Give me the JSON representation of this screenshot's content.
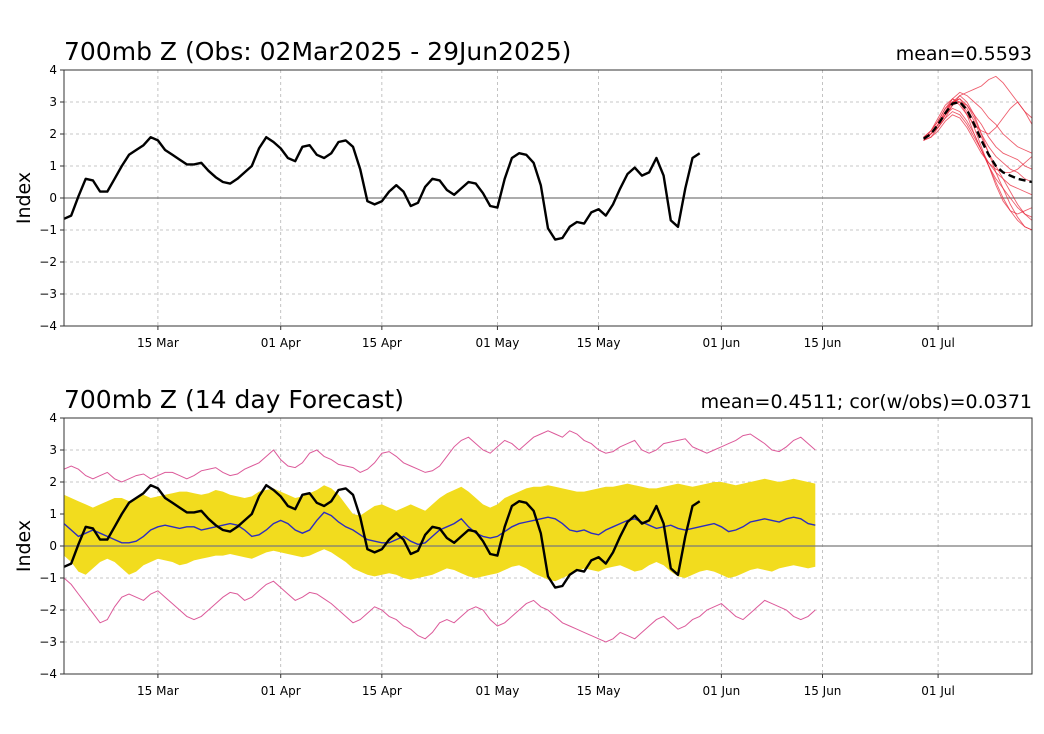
{
  "chart_data": [
    {
      "type": "line",
      "title": "700mb Z (Obs: 02Mar2025 - 29Jun2025)",
      "stat": "mean=0.5593",
      "ylabel": "Index",
      "xlabel": "",
      "ylim": [
        -4,
        4
      ],
      "yticks": [
        -4,
        -3,
        -2,
        -1,
        0,
        1,
        2,
        3,
        4
      ],
      "xlim": [
        "2025-03-02",
        "2025-07-14"
      ],
      "xticks": [
        {
          "date": "2025-03-15",
          "label": "15 Mar"
        },
        {
          "date": "2025-04-01",
          "label": "01 Apr"
        },
        {
          "date": "2025-04-15",
          "label": "15 Apr"
        },
        {
          "date": "2025-05-01",
          "label": "01 May"
        },
        {
          "date": "2025-05-15",
          "label": "15 May"
        },
        {
          "date": "2025-06-01",
          "label": "01 Jun"
        },
        {
          "date": "2025-06-15",
          "label": "15 Jun"
        },
        {
          "date": "2025-07-01",
          "label": "01 Jul"
        }
      ],
      "grid": true,
      "colors": {
        "obs": "#000000",
        "members": "#e8283c",
        "ensemble_mean": "#000000"
      },
      "obs": {
        "start": "2025-03-02",
        "values": [
          -0.65,
          -0.55,
          0.05,
          0.6,
          0.55,
          0.2,
          0.2,
          0.6,
          1.0,
          1.35,
          1.5,
          1.65,
          1.9,
          1.8,
          1.5,
          1.35,
          1.2,
          1.05,
          1.05,
          1.1,
          0.85,
          0.65,
          0.5,
          0.45,
          0.6,
          0.8,
          1.0,
          1.55,
          1.9,
          1.75,
          1.55,
          1.25,
          1.15,
          1.6,
          1.65,
          1.35,
          1.25,
          1.4,
          1.75,
          1.8,
          1.6,
          0.9,
          -0.1,
          -0.2,
          -0.1,
          0.2,
          0.4,
          0.2,
          -0.25,
          -0.15,
          0.35,
          0.6,
          0.55,
          0.25,
          0.1,
          0.3,
          0.5,
          0.45,
          0.15,
          -0.25,
          -0.3,
          0.6,
          1.25,
          1.4,
          1.35,
          1.1,
          0.4,
          -0.95,
          -1.3,
          -1.25,
          -0.9,
          -0.75,
          -0.8,
          -0.45,
          -0.35,
          -0.55,
          -0.2,
          0.3,
          0.75,
          0.95,
          0.7,
          0.8,
          1.25,
          0.7,
          -0.7,
          -0.9,
          0.3,
          1.25,
          1.4
        ]
      },
      "members_forecast": {
        "start": "2025-06-29",
        "members": [
          [
            1.8,
            2.0,
            2.3,
            2.7,
            3.0,
            3.1,
            2.9,
            2.5,
            2.0,
            1.6,
            1.3,
            1.1,
            0.9,
            0.8,
            0.6,
            0.5
          ],
          [
            1.8,
            2.1,
            2.4,
            2.8,
            3.1,
            3.0,
            2.6,
            2.0,
            1.5,
            1.0,
            0.6,
            0.3,
            0.0,
            -0.3,
            -0.5,
            -0.7
          ],
          [
            1.9,
            2.0,
            2.2,
            2.5,
            2.9,
            3.2,
            3.3,
            3.4,
            3.5,
            3.7,
            3.8,
            3.6,
            3.3,
            3.0,
            2.7,
            2.5
          ],
          [
            1.8,
            2.0,
            2.3,
            2.6,
            2.8,
            2.7,
            2.4,
            2.0,
            1.5,
            1.0,
            0.5,
            0.0,
            -0.4,
            -0.7,
            -0.9,
            -1.0
          ],
          [
            1.9,
            2.1,
            2.5,
            2.9,
            3.1,
            2.9,
            2.6,
            2.3,
            2.1,
            2.0,
            2.2,
            2.5,
            2.8,
            3.0,
            2.7,
            2.3
          ],
          [
            1.8,
            1.9,
            2.2,
            2.5,
            2.7,
            2.6,
            2.3,
            1.9,
            1.5,
            1.1,
            0.8,
            0.6,
            0.4,
            0.3,
            0.2,
            0.1
          ],
          [
            1.9,
            2.0,
            2.3,
            2.6,
            3.0,
            3.1,
            2.8,
            2.4,
            1.9,
            1.4,
            1.0,
            0.6,
            0.2,
            -0.2,
            -0.5,
            -0.6
          ],
          [
            1.8,
            2.0,
            2.2,
            2.6,
            2.9,
            3.0,
            2.9,
            2.6,
            2.3,
            1.9,
            1.6,
            1.4,
            1.3,
            1.2,
            1.0,
            0.9
          ],
          [
            1.9,
            2.1,
            2.4,
            2.8,
            3.0,
            3.2,
            3.0,
            2.6,
            2.0,
            1.4,
            0.8,
            0.3,
            -0.2,
            -0.6,
            -0.9,
            -1.0
          ],
          [
            1.8,
            1.9,
            2.1,
            2.4,
            2.6,
            2.5,
            2.2,
            1.8,
            1.4,
            1.1,
            0.9,
            0.8,
            0.8,
            0.9,
            1.1,
            1.3
          ],
          [
            1.8,
            2.0,
            2.3,
            2.7,
            3.0,
            3.0,
            2.7,
            2.2,
            1.6,
            1.0,
            0.4,
            -0.1,
            -0.4,
            -0.5,
            -0.4,
            -0.3
          ],
          [
            1.9,
            2.0,
            2.3,
            2.7,
            3.1,
            3.3,
            3.2,
            3.0,
            2.8,
            2.5,
            2.3,
            2.0,
            1.8,
            1.6,
            1.5,
            1.4
          ]
        ],
        "ensemble_mean": [
          1.85,
          2.0,
          2.3,
          2.65,
          2.95,
          3.0,
          2.75,
          2.3,
          1.8,
          1.35,
          1.0,
          0.8,
          0.7,
          0.6,
          0.55,
          0.5
        ]
      }
    },
    {
      "type": "line",
      "title": "700mb Z (14 day Forecast)",
      "stat": "mean=0.4511; cor(w/obs)=0.0371",
      "ylabel": "Index",
      "xlabel": "",
      "ylim": [
        -4,
        4
      ],
      "yticks": [
        -4,
        -3,
        -2,
        -1,
        0,
        1,
        2,
        3,
        4
      ],
      "xlim": [
        "2025-03-02",
        "2025-07-14"
      ],
      "xticks": [
        {
          "date": "2025-03-15",
          "label": "15 Mar"
        },
        {
          "date": "2025-04-01",
          "label": "01 Apr"
        },
        {
          "date": "2025-04-15",
          "label": "15 Apr"
        },
        {
          "date": "2025-05-01",
          "label": "01 May"
        },
        {
          "date": "2025-05-15",
          "label": "15 May"
        },
        {
          "date": "2025-06-01",
          "label": "01 Jun"
        },
        {
          "date": "2025-06-15",
          "label": "15 Jun"
        },
        {
          "date": "2025-07-01",
          "label": "01 Jul"
        }
      ],
      "grid": true,
      "colors": {
        "obs": "#000000",
        "forecast_mean": "#2d2dbf",
        "band": "#f2dc1e",
        "extremes": "#dc5a9a"
      },
      "forecast": {
        "start": "2025-03-02",
        "mean": [
          0.7,
          0.5,
          0.3,
          0.4,
          0.5,
          0.4,
          0.3,
          0.2,
          0.1,
          0.1,
          0.15,
          0.3,
          0.5,
          0.6,
          0.65,
          0.6,
          0.55,
          0.6,
          0.6,
          0.5,
          0.55,
          0.6,
          0.65,
          0.7,
          0.65,
          0.5,
          0.3,
          0.35,
          0.5,
          0.7,
          0.8,
          0.7,
          0.5,
          0.4,
          0.5,
          0.8,
          1.05,
          0.95,
          0.75,
          0.6,
          0.5,
          0.35,
          0.2,
          0.15,
          0.1,
          0.1,
          0.2,
          0.3,
          0.15,
          0.05,
          0.1,
          0.3,
          0.5,
          0.6,
          0.7,
          0.85,
          0.6,
          0.4,
          0.3,
          0.25,
          0.3,
          0.45,
          0.6,
          0.7,
          0.75,
          0.8,
          0.85,
          0.9,
          0.85,
          0.7,
          0.5,
          0.45,
          0.5,
          0.4,
          0.35,
          0.5,
          0.6,
          0.7,
          0.8,
          0.85,
          0.75,
          0.65,
          0.55,
          0.6,
          0.65,
          0.55,
          0.5,
          0.55,
          0.6,
          0.65,
          0.7,
          0.6,
          0.45,
          0.5,
          0.6,
          0.75,
          0.8,
          0.85,
          0.8,
          0.75,
          0.85,
          0.9,
          0.85,
          0.7,
          0.65
        ],
        "band_upper": [
          1.6,
          1.5,
          1.4,
          1.3,
          1.2,
          1.3,
          1.4,
          1.5,
          1.5,
          1.4,
          1.5,
          1.6,
          1.5,
          1.55,
          1.6,
          1.65,
          1.7,
          1.7,
          1.65,
          1.6,
          1.65,
          1.75,
          1.7,
          1.6,
          1.55,
          1.5,
          1.55,
          1.7,
          1.75,
          1.8,
          1.7,
          1.6,
          1.5,
          1.55,
          1.65,
          1.75,
          1.9,
          1.8,
          1.6,
          1.3,
          1.0,
          0.95,
          1.1,
          1.25,
          1.3,
          1.2,
          1.1,
          1.2,
          1.3,
          1.2,
          1.1,
          1.3,
          1.5,
          1.65,
          1.75,
          1.85,
          1.7,
          1.5,
          1.3,
          1.2,
          1.3,
          1.5,
          1.6,
          1.7,
          1.8,
          1.85,
          1.85,
          1.9,
          1.85,
          1.8,
          1.75,
          1.7,
          1.7,
          1.75,
          1.8,
          1.85,
          1.85,
          1.9,
          1.95,
          1.9,
          1.85,
          1.8,
          1.8,
          1.85,
          1.9,
          1.95,
          1.9,
          1.85,
          1.9,
          1.95,
          2.0,
          2.0,
          1.95,
          1.9,
          1.95,
          2.0,
          2.05,
          2.1,
          2.05,
          2.0,
          2.05,
          2.1,
          2.05,
          2.0,
          1.95
        ],
        "band_lower": [
          -0.3,
          -0.5,
          -0.8,
          -0.9,
          -0.7,
          -0.5,
          -0.4,
          -0.5,
          -0.7,
          -0.9,
          -0.8,
          -0.6,
          -0.5,
          -0.4,
          -0.45,
          -0.5,
          -0.6,
          -0.55,
          -0.45,
          -0.4,
          -0.35,
          -0.3,
          -0.3,
          -0.25,
          -0.3,
          -0.35,
          -0.4,
          -0.3,
          -0.2,
          -0.15,
          -0.2,
          -0.25,
          -0.3,
          -0.35,
          -0.3,
          -0.2,
          -0.1,
          -0.2,
          -0.35,
          -0.5,
          -0.7,
          -0.8,
          -0.9,
          -0.95,
          -0.9,
          -0.85,
          -0.9,
          -1.0,
          -1.05,
          -1.0,
          -0.95,
          -0.9,
          -0.8,
          -0.7,
          -0.75,
          -0.85,
          -0.95,
          -1.0,
          -0.95,
          -0.9,
          -0.85,
          -0.75,
          -0.65,
          -0.6,
          -0.7,
          -0.85,
          -0.95,
          -1.05,
          -1.1,
          -1.0,
          -0.9,
          -0.8,
          -0.7,
          -0.75,
          -0.8,
          -0.7,
          -0.65,
          -0.6,
          -0.7,
          -0.8,
          -0.75,
          -0.6,
          -0.5,
          -0.6,
          -0.8,
          -0.95,
          -1.0,
          -0.9,
          -0.8,
          -0.75,
          -0.8,
          -0.9,
          -1.0,
          -0.95,
          -0.85,
          -0.75,
          -0.7,
          -0.75,
          -0.8,
          -0.7,
          -0.65,
          -0.6,
          -0.65,
          -0.7,
          -0.65
        ],
        "max": [
          2.4,
          2.5,
          2.4,
          2.2,
          2.1,
          2.2,
          2.3,
          2.1,
          2.0,
          2.1,
          2.2,
          2.25,
          2.1,
          2.2,
          2.3,
          2.3,
          2.2,
          2.1,
          2.2,
          2.35,
          2.4,
          2.45,
          2.3,
          2.2,
          2.25,
          2.4,
          2.5,
          2.6,
          2.8,
          3.0,
          2.7,
          2.5,
          2.45,
          2.6,
          2.9,
          3.0,
          2.8,
          2.7,
          2.55,
          2.5,
          2.45,
          2.3,
          2.4,
          2.6,
          2.9,
          2.95,
          2.8,
          2.6,
          2.5,
          2.4,
          2.3,
          2.35,
          2.5,
          2.8,
          3.1,
          3.3,
          3.4,
          3.2,
          3.0,
          2.9,
          3.1,
          3.3,
          3.2,
          3.0,
          3.2,
          3.4,
          3.5,
          3.6,
          3.5,
          3.4,
          3.6,
          3.5,
          3.3,
          3.2,
          3.0,
          2.9,
          2.95,
          3.1,
          3.2,
          3.3,
          3.0,
          2.9,
          3.0,
          3.2,
          3.25,
          3.3,
          3.35,
          3.1,
          3.0,
          2.9,
          3.0,
          3.1,
          3.2,
          3.3,
          3.45,
          3.5,
          3.35,
          3.2,
          3.0,
          2.95,
          3.1,
          3.3,
          3.4,
          3.2,
          3.0
        ],
        "min": [
          -1.0,
          -1.2,
          -1.5,
          -1.8,
          -2.1,
          -2.4,
          -2.3,
          -1.9,
          -1.6,
          -1.5,
          -1.6,
          -1.7,
          -1.5,
          -1.4,
          -1.6,
          -1.8,
          -2.0,
          -2.2,
          -2.3,
          -2.2,
          -2.0,
          -1.8,
          -1.6,
          -1.45,
          -1.5,
          -1.7,
          -1.6,
          -1.4,
          -1.2,
          -1.1,
          -1.3,
          -1.5,
          -1.7,
          -1.6,
          -1.45,
          -1.5,
          -1.65,
          -1.8,
          -2.0,
          -2.2,
          -2.4,
          -2.3,
          -2.1,
          -1.9,
          -2.0,
          -2.2,
          -2.3,
          -2.5,
          -2.6,
          -2.8,
          -2.9,
          -2.7,
          -2.4,
          -2.3,
          -2.4,
          -2.2,
          -2.0,
          -1.9,
          -2.0,
          -2.3,
          -2.5,
          -2.4,
          -2.2,
          -2.0,
          -1.8,
          -1.7,
          -1.9,
          -2.0,
          -2.2,
          -2.4,
          -2.5,
          -2.6,
          -2.7,
          -2.8,
          -2.9,
          -3.0,
          -2.9,
          -2.7,
          -2.8,
          -2.9,
          -2.7,
          -2.5,
          -2.3,
          -2.2,
          -2.4,
          -2.6,
          -2.5,
          -2.3,
          -2.2,
          -2.0,
          -1.9,
          -1.8,
          -2.0,
          -2.2,
          -2.3,
          -2.1,
          -1.9,
          -1.7,
          -1.8,
          -1.9,
          -2.0,
          -2.2,
          -2.3,
          -2.2,
          -2.0
        ]
      },
      "obs": {
        "start": "2025-03-02",
        "values": [
          -0.65,
          -0.55,
          0.05,
          0.6,
          0.55,
          0.2,
          0.2,
          0.6,
          1.0,
          1.35,
          1.5,
          1.65,
          1.9,
          1.8,
          1.5,
          1.35,
          1.2,
          1.05,
          1.05,
          1.1,
          0.85,
          0.65,
          0.5,
          0.45,
          0.6,
          0.8,
          1.0,
          1.55,
          1.9,
          1.75,
          1.55,
          1.25,
          1.15,
          1.6,
          1.65,
          1.35,
          1.25,
          1.4,
          1.75,
          1.8,
          1.6,
          0.9,
          -0.1,
          -0.2,
          -0.1,
          0.2,
          0.4,
          0.2,
          -0.25,
          -0.15,
          0.35,
          0.6,
          0.55,
          0.25,
          0.1,
          0.3,
          0.5,
          0.45,
          0.15,
          -0.25,
          -0.3,
          0.6,
          1.25,
          1.4,
          1.35,
          1.1,
          0.4,
          -0.95,
          -1.3,
          -1.25,
          -0.9,
          -0.75,
          -0.8,
          -0.45,
          -0.35,
          -0.55,
          -0.2,
          0.3,
          0.75,
          0.95,
          0.7,
          0.8,
          1.25,
          0.7,
          -0.7,
          -0.9,
          0.3,
          1.25,
          1.4
        ]
      }
    }
  ]
}
